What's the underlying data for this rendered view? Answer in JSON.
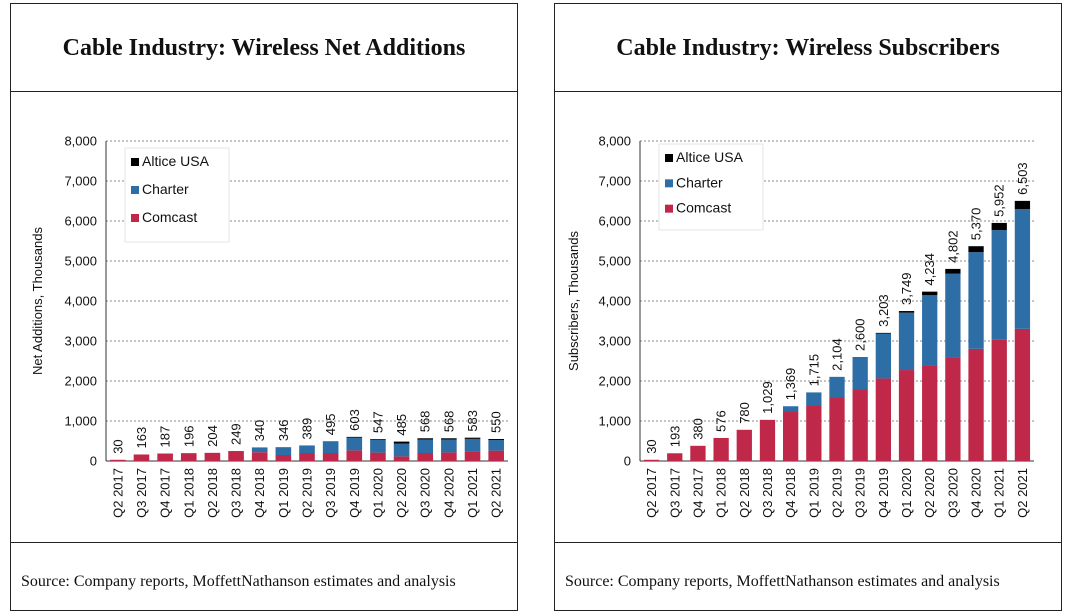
{
  "chart_data": [
    {
      "type": "bar",
      "stacked": true,
      "title": "Cable Industry: Wireless Net Additions",
      "ylabel": "Net Additions, Thousands",
      "ylim": [
        0,
        8000
      ],
      "yticks": [
        "0",
        "1,000",
        "2,000",
        "3,000",
        "4,000",
        "5,000",
        "6,000",
        "7,000",
        "8,000"
      ],
      "grid": true,
      "legend": "top-left",
      "categories": [
        "Q2 2017",
        "Q3 2017",
        "Q4 2017",
        "Q1 2018",
        "Q2 2018",
        "Q3 2018",
        "Q4 2018",
        "Q1 2019",
        "Q2 2019",
        "Q3 2019",
        "Q4 2019",
        "Q1 2020",
        "Q2 2020",
        "Q3 2020",
        "Q4 2020",
        "Q1 2021",
        "Q2 2021"
      ],
      "series": [
        {
          "name": "Comcast",
          "color": "#c0284a",
          "values": [
            30,
            163,
            187,
            196,
            204,
            249,
            220,
            150,
            200,
            200,
            265,
            210,
            115,
            200,
            215,
            240,
            260
          ]
        },
        {
          "name": "Charter",
          "color": "#2e6ea7",
          "values": [
            0,
            0,
            0,
            0,
            0,
            0,
            120,
            196,
            189,
            295,
            318,
            317,
            320,
            338,
            323,
            313,
            265
          ]
        },
        {
          "name": "Altice USA",
          "color": "#000000",
          "values": [
            0,
            0,
            0,
            0,
            0,
            0,
            0,
            0,
            0,
            0,
            20,
            20,
            50,
            30,
            30,
            30,
            25
          ]
        }
      ],
      "totals": [
        "30",
        "163",
        "187",
        "196",
        "204",
        "249",
        "340",
        "346",
        "389",
        "495",
        "603",
        "547",
        "485",
        "568",
        "568",
        "583",
        "550"
      ],
      "source": "Source: Company reports, MoffettNathanson estimates and analysis"
    },
    {
      "type": "bar",
      "stacked": true,
      "title": "Cable Industry: Wireless Subscribers",
      "ylabel": "Subscribers, Thousands",
      "ylim": [
        0,
        8000
      ],
      "yticks": [
        "0",
        "1,000",
        "2,000",
        "3,000",
        "4,000",
        "5,000",
        "6,000",
        "7,000",
        "8,000"
      ],
      "grid": true,
      "legend": "top-left",
      "categories": [
        "Q2 2017",
        "Q3 2017",
        "Q4 2017",
        "Q1 2018",
        "Q2 2018",
        "Q3 2018",
        "Q4 2018",
        "Q1 2019",
        "Q2 2019",
        "Q3 2019",
        "Q4 2019",
        "Q1 2020",
        "Q2 2020",
        "Q3 2020",
        "Q4 2020",
        "Q1 2021",
        "Q2 2021"
      ],
      "series": [
        {
          "name": "Comcast",
          "color": "#c0284a",
          "values": [
            30,
            193,
            380,
            576,
            780,
            1029,
            1249,
            1399,
            1599,
            1799,
            2064,
            2274,
            2389,
            2589,
            2804,
            3044,
            3304
          ]
        },
        {
          "name": "Charter",
          "color": "#2e6ea7",
          "values": [
            0,
            0,
            0,
            0,
            0,
            0,
            120,
            316,
            505,
            801,
            1119,
            1435,
            1755,
            2093,
            2416,
            2728,
            2994
          ]
        },
        {
          "name": "Altice USA",
          "color": "#000000",
          "values": [
            0,
            0,
            0,
            0,
            0,
            0,
            0,
            0,
            0,
            0,
            20,
            40,
            90,
            120,
            150,
            180,
            205
          ]
        }
      ],
      "totals": [
        "30",
        "193",
        "380",
        "576",
        "780",
        "1,029",
        "1,369",
        "1,715",
        "2,104",
        "2,600",
        "3,203",
        "3,749",
        "4,234",
        "4,802",
        "5,370",
        "5,952",
        "6,503"
      ],
      "source": "Source: Company reports, MoffettNathanson estimates and analysis"
    }
  ]
}
